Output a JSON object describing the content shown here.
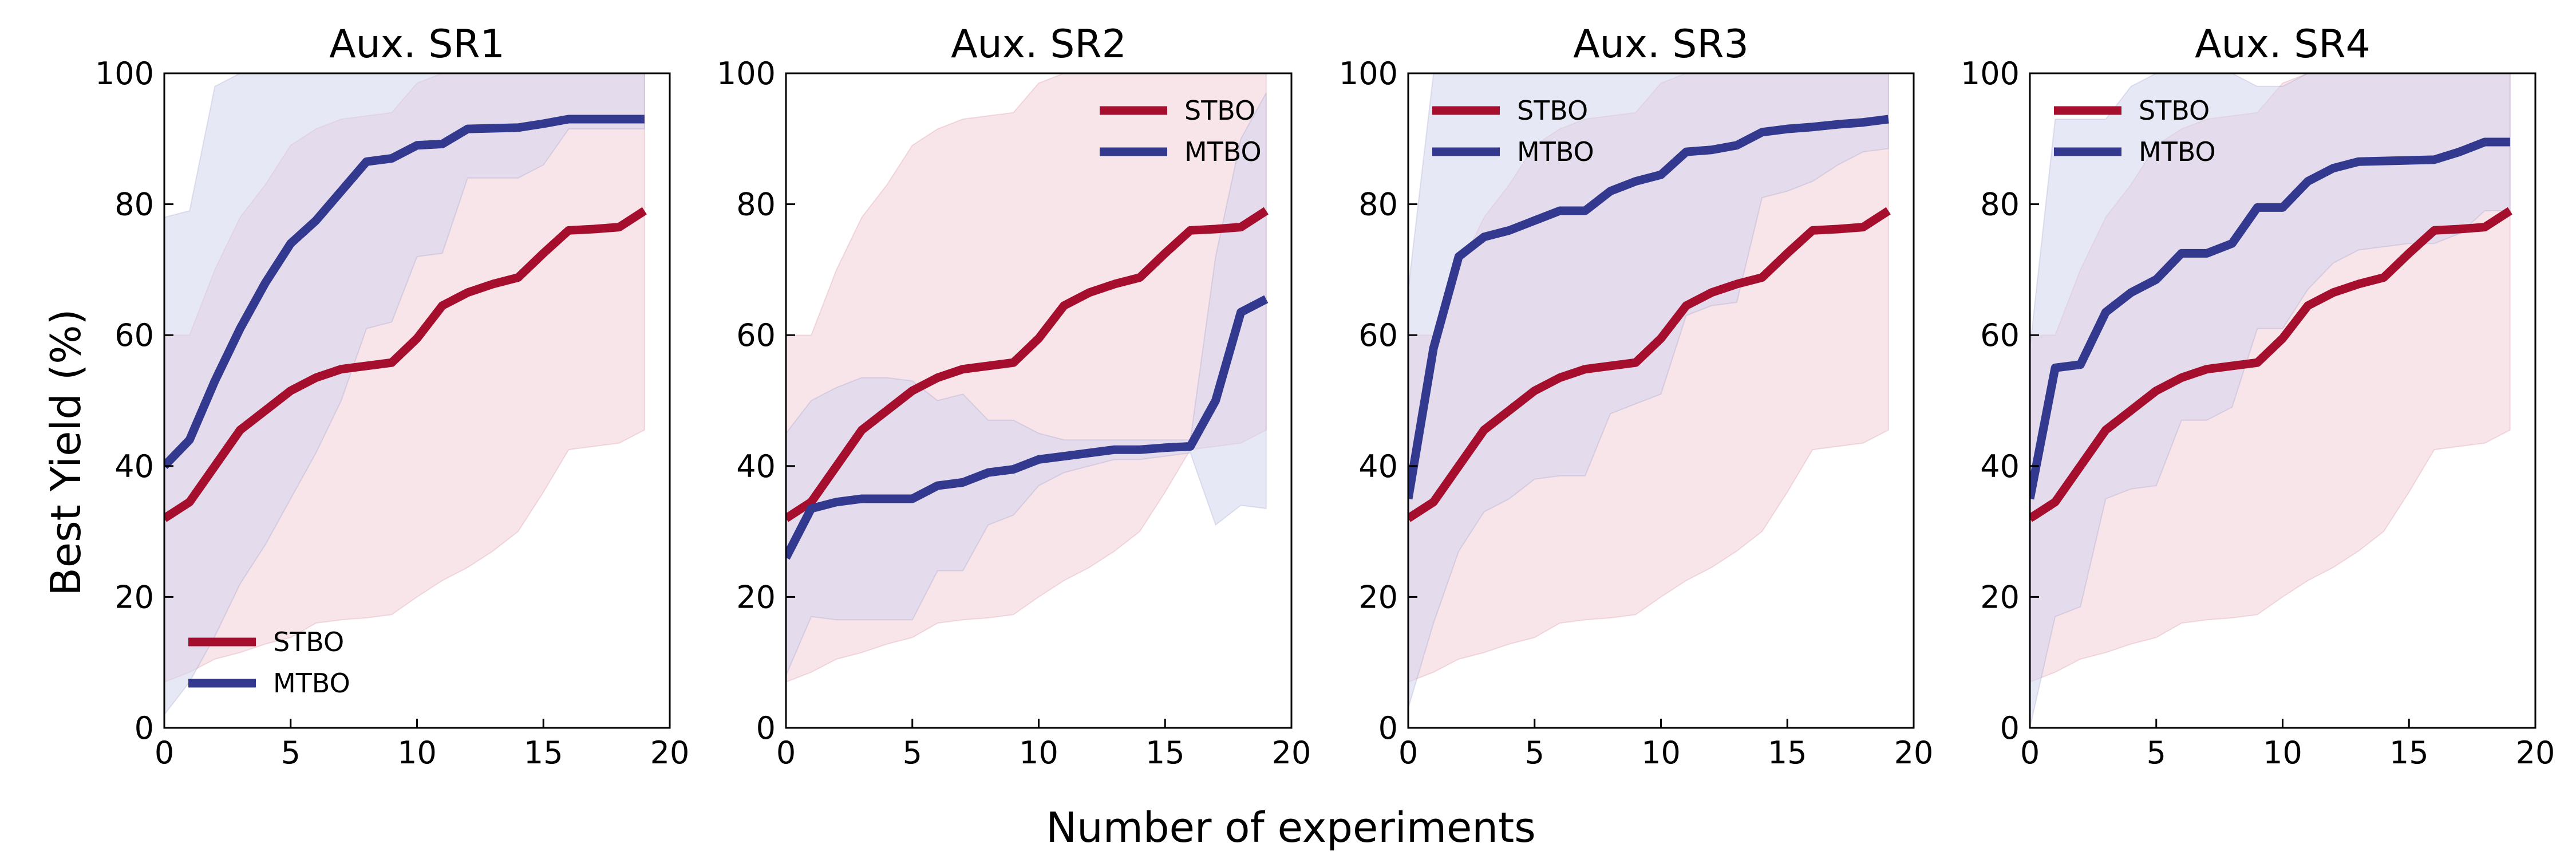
{
  "figure": {
    "ylabel": "Best Yield (%)",
    "xlabel": "Number of experiments"
  },
  "colors": {
    "STBO": "#a50f2d",
    "MTBO": "#32398f",
    "STBO_band": "#f2d0d8",
    "MTBO_band": "#d4d5ec"
  },
  "chart_data": [
    {
      "type": "line",
      "title": "Aux. SR1",
      "xlim": [
        0,
        20
      ],
      "ylim": [
        0,
        100
      ],
      "xticks": [
        0,
        5,
        10,
        15,
        20
      ],
      "yticks": [
        0,
        20,
        40,
        60,
        80,
        100
      ],
      "legend": "bottom-left",
      "series": [
        {
          "name": "STBO",
          "x": [
            0,
            1,
            2,
            3,
            4,
            5,
            6,
            7,
            8,
            9,
            10,
            11,
            12,
            13,
            14,
            15,
            16,
            17,
            18,
            19
          ],
          "mean": [
            32,
            34.5,
            40,
            45.5,
            48.5,
            51.5,
            53.5,
            54.8,
            55.3,
            55.8,
            59.5,
            64.5,
            66.5,
            67.8,
            68.8,
            72.5,
            76,
            76.2,
            76.5,
            79
          ],
          "upper": [
            60,
            60,
            70,
            78,
            83,
            89,
            91.5,
            93,
            93.5,
            94,
            98.5,
            100,
            100,
            100,
            100,
            100,
            100,
            100,
            100,
            100
          ],
          "lower": [
            7,
            8.5,
            10.5,
            11.5,
            12.8,
            13.8,
            16,
            16.5,
            16.8,
            17.3,
            20,
            22.5,
            24.5,
            27,
            30,
            36,
            42.5,
            43,
            43.5,
            45.5
          ]
        },
        {
          "name": "MTBO",
          "x": [
            0,
            1,
            2,
            3,
            4,
            5,
            6,
            7,
            8,
            9,
            10,
            11,
            12,
            13,
            14,
            15,
            16,
            17,
            18,
            19
          ],
          "mean": [
            40,
            44,
            53,
            61,
            68,
            74,
            77.5,
            82,
            86.5,
            87,
            89,
            89.2,
            91.5,
            91.6,
            91.7,
            92.3,
            93,
            93,
            93,
            93
          ],
          "upper": [
            78,
            79,
            98,
            100,
            100,
            100,
            100,
            100,
            100,
            100,
            100,
            100,
            100,
            100,
            100,
            100,
            100,
            100,
            100,
            100
          ],
          "lower": [
            2,
            7,
            14,
            22,
            28,
            35,
            42,
            50,
            61,
            62,
            72,
            72.5,
            84,
            84,
            84,
            86,
            91.5,
            91.5,
            91.5,
            91.5
          ]
        }
      ]
    },
    {
      "type": "line",
      "title": "Aux. SR2",
      "xlim": [
        0,
        20
      ],
      "ylim": [
        0,
        100
      ],
      "xticks": [
        0,
        5,
        10,
        15,
        20
      ],
      "yticks": [
        0,
        20,
        40,
        60,
        80,
        100
      ],
      "legend": "top-right",
      "series": [
        {
          "name": "STBO",
          "x": [
            0,
            1,
            2,
            3,
            4,
            5,
            6,
            7,
            8,
            9,
            10,
            11,
            12,
            13,
            14,
            15,
            16,
            17,
            18,
            19
          ],
          "mean": [
            32,
            34.5,
            40,
            45.5,
            48.5,
            51.5,
            53.5,
            54.8,
            55.3,
            55.8,
            59.5,
            64.5,
            66.5,
            67.8,
            68.8,
            72.5,
            76,
            76.2,
            76.5,
            79
          ],
          "upper": [
            60,
            60,
            70,
            78,
            83,
            89,
            91.5,
            93,
            93.5,
            94,
            98.5,
            100,
            100,
            100,
            100,
            100,
            100,
            100,
            100,
            100
          ],
          "lower": [
            7,
            8.5,
            10.5,
            11.5,
            12.8,
            13.8,
            16,
            16.5,
            16.8,
            17.3,
            20,
            22.5,
            24.5,
            27,
            30,
            36,
            42.5,
            43,
            43.5,
            45.5
          ]
        },
        {
          "name": "MTBO",
          "x": [
            0,
            1,
            2,
            3,
            4,
            5,
            6,
            7,
            8,
            9,
            10,
            11,
            12,
            13,
            14,
            15,
            16,
            17,
            18,
            19
          ],
          "mean": [
            26,
            33.5,
            34.5,
            35,
            35,
            35,
            37,
            37.5,
            39,
            39.5,
            41,
            41.5,
            42,
            42.5,
            42.5,
            42.8,
            43,
            50,
            63.5,
            65.5
          ],
          "upper": [
            45,
            50,
            52,
            53.5,
            53.5,
            53,
            50,
            51,
            47,
            47,
            45,
            44,
            44,
            44,
            44,
            44,
            44,
            72,
            90,
            97
          ],
          "lower": [
            8,
            17,
            16.5,
            16.5,
            16.5,
            16.5,
            24,
            24,
            31,
            32.5,
            37,
            39,
            40,
            41,
            41,
            41.5,
            42,
            31,
            34,
            33.5
          ]
        }
      ]
    },
    {
      "type": "line",
      "title": "Aux. SR3",
      "xlim": [
        0,
        20
      ],
      "ylim": [
        0,
        100
      ],
      "xticks": [
        0,
        5,
        10,
        15,
        20
      ],
      "yticks": [
        0,
        20,
        40,
        60,
        80,
        100
      ],
      "legend": "top-left",
      "series": [
        {
          "name": "STBO",
          "x": [
            0,
            1,
            2,
            3,
            4,
            5,
            6,
            7,
            8,
            9,
            10,
            11,
            12,
            13,
            14,
            15,
            16,
            17,
            18,
            19
          ],
          "mean": [
            32,
            34.5,
            40,
            45.5,
            48.5,
            51.5,
            53.5,
            54.8,
            55.3,
            55.8,
            59.5,
            64.5,
            66.5,
            67.8,
            68.8,
            72.5,
            76,
            76.2,
            76.5,
            79
          ],
          "upper": [
            60,
            60,
            70,
            78,
            83,
            89,
            91.5,
            93,
            93.5,
            94,
            98.5,
            100,
            100,
            100,
            100,
            100,
            100,
            100,
            100,
            100
          ],
          "lower": [
            7,
            8.5,
            10.5,
            11.5,
            12.8,
            13.8,
            16,
            16.5,
            16.8,
            17.3,
            20,
            22.5,
            24.5,
            27,
            30,
            36,
            42.5,
            43,
            43.5,
            45.5
          ]
        },
        {
          "name": "MTBO",
          "x": [
            0,
            1,
            2,
            3,
            4,
            5,
            6,
            7,
            8,
            9,
            10,
            11,
            12,
            13,
            14,
            15,
            16,
            17,
            18,
            19
          ],
          "mean": [
            35,
            58,
            72,
            75,
            76,
            77.5,
            79,
            79,
            82,
            83.5,
            84.5,
            88,
            88.3,
            89,
            91,
            91.5,
            91.8,
            92.2,
            92.5,
            93
          ],
          "upper": [
            67,
            100,
            100,
            100,
            100,
            100,
            100,
            100,
            100,
            100,
            100,
            100,
            100,
            100,
            100,
            100,
            100,
            100,
            100,
            100
          ],
          "lower": [
            3,
            16,
            27,
            33,
            35,
            38,
            38.5,
            38.5,
            48,
            49.5,
            51,
            63,
            64.5,
            65,
            81,
            82,
            83.5,
            86,
            88,
            88.5
          ]
        }
      ]
    },
    {
      "type": "line",
      "title": "Aux. SR4",
      "xlim": [
        0,
        20
      ],
      "ylim": [
        0,
        100
      ],
      "xticks": [
        0,
        5,
        10,
        15,
        20
      ],
      "yticks": [
        0,
        20,
        40,
        60,
        80,
        100
      ],
      "legend": "top-left",
      "series": [
        {
          "name": "STBO",
          "x": [
            0,
            1,
            2,
            3,
            4,
            5,
            6,
            7,
            8,
            9,
            10,
            11,
            12,
            13,
            14,
            15,
            16,
            17,
            18,
            19
          ],
          "mean": [
            32,
            34.5,
            40,
            45.5,
            48.5,
            51.5,
            53.5,
            54.8,
            55.3,
            55.8,
            59.5,
            64.5,
            66.5,
            67.8,
            68.8,
            72.5,
            76,
            76.2,
            76.5,
            79
          ],
          "upper": [
            60,
            60,
            70,
            78,
            83,
            89,
            91.5,
            93,
            93.5,
            94,
            98.5,
            100,
            100,
            100,
            100,
            100,
            100,
            100,
            100,
            100
          ],
          "lower": [
            7,
            8.5,
            10.5,
            11.5,
            12.8,
            13.8,
            16,
            16.5,
            16.8,
            17.3,
            20,
            22.5,
            24.5,
            27,
            30,
            36,
            42.5,
            43,
            43.5,
            45.5
          ]
        },
        {
          "name": "MTBO",
          "x": [
            0,
            1,
            2,
            3,
            4,
            5,
            6,
            7,
            8,
            9,
            10,
            11,
            12,
            13,
            14,
            15,
            16,
            17,
            18,
            19
          ],
          "mean": [
            35,
            55,
            55.5,
            63.5,
            66.5,
            68.5,
            72.5,
            72.5,
            74,
            79.5,
            79.5,
            83.5,
            85.5,
            86.5,
            86.6,
            86.7,
            86.8,
            88,
            89.5,
            89.5
          ],
          "upper": [
            58,
            93,
            93,
            93,
            98,
            100,
            100,
            100,
            100,
            98,
            98,
            100,
            100,
            100,
            100,
            100,
            100,
            100,
            100,
            100
          ],
          "lower": [
            0,
            17,
            18.5,
            35,
            36.5,
            37,
            47,
            47,
            49,
            61,
            61,
            67,
            71,
            73,
            73.5,
            74,
            74,
            75.5,
            79,
            79
          ]
        }
      ]
    }
  ]
}
